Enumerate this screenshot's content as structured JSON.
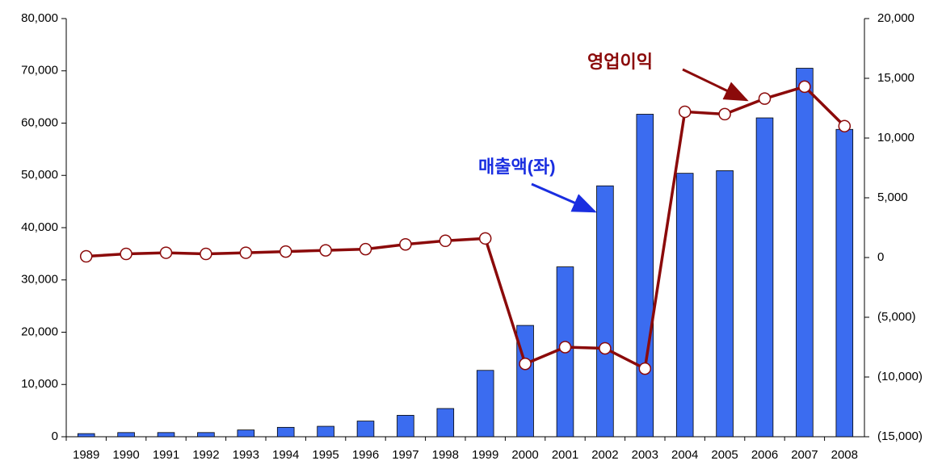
{
  "chart_data": {
    "type": "bar-line",
    "categories": [
      "1989",
      "1990",
      "1991",
      "1992",
      "1993",
      "1994",
      "1995",
      "1996",
      "1997",
      "1998",
      "1999",
      "2000",
      "2001",
      "2002",
      "2003",
      "2004",
      "2005",
      "2006",
      "2007",
      "2008"
    ],
    "series": [
      {
        "name": "매출액(좌)",
        "type": "bar",
        "color": "#3b6cf0",
        "values": [
          600,
          800,
          800,
          800,
          1300,
          1800,
          2000,
          3000,
          4100,
          5400,
          12700,
          21300,
          32500,
          48000,
          61700,
          50400,
          50900,
          61000,
          70500,
          58800
        ]
      },
      {
        "name": "영업이익",
        "type": "line",
        "axis": "y2",
        "color": "#8b0a0a",
        "values": [
          100,
          300,
          400,
          300,
          400,
          500,
          600,
          700,
          1100,
          1400,
          1600,
          -8900,
          -7500,
          -7600,
          -9300,
          12200,
          12000,
          13300,
          14300,
          11000
        ]
      }
    ],
    "ylim": [
      0,
      80000
    ],
    "yticks": [
      0,
      {
        "value": 10000,
        "label": "10,000"
      },
      {
        "value": 20000,
        "label": "20,000"
      },
      {
        "value": 30000,
        "label": "30,000"
      },
      {
        "value": 40000,
        "label": "40,000"
      },
      {
        "value": 50000,
        "label": "50,000"
      },
      {
        "value": 60000,
        "label": "60,000"
      },
      {
        "value": 70000,
        "label": "70,000"
      },
      {
        "value": 80000,
        "label": "80,000"
      }
    ],
    "y2lim": [
      -15000,
      20000
    ],
    "y2ticks": [
      {
        "value": -15000,
        "label": "(15,000)"
      },
      {
        "value": -10000,
        "label": "(10,000)"
      },
      {
        "value": -5000,
        "label": "(5,000)"
      },
      0,
      {
        "value": 5000,
        "label": "5,000"
      },
      {
        "value": 10000,
        "label": "10,000"
      },
      {
        "value": 15000,
        "label": "15,000"
      },
      {
        "value": 20000,
        "label": "20,000"
      }
    ],
    "grid": false
  }
}
